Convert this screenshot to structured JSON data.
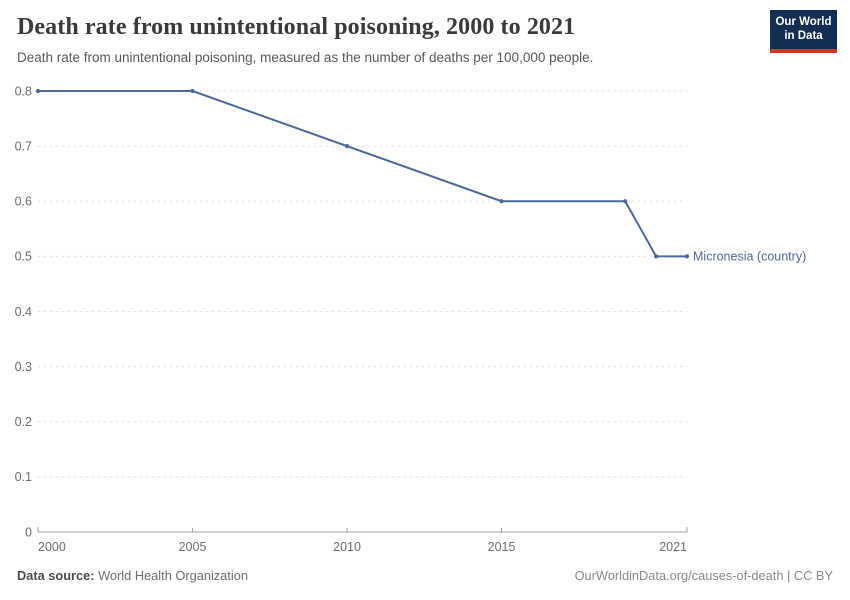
{
  "chart_data": {
    "type": "line",
    "title": "Death rate from unintentional poisoning, 2000 to 2021",
    "subtitle": "Death rate from unintentional poisoning, measured as the number of deaths per 100,000 people.",
    "xlabel": "",
    "ylabel": "",
    "xlim": [
      2000,
      2021
    ],
    "ylim": [
      0,
      0.8
    ],
    "grid": "horizontal-dashed",
    "legend_position": "end-of-line-label",
    "x_ticks": [
      {
        "v": 2000,
        "label": "2000"
      },
      {
        "v": 2005,
        "label": "2005"
      },
      {
        "v": 2010,
        "label": "2010"
      },
      {
        "v": 2015,
        "label": "2015"
      },
      {
        "v": 2021,
        "label": "2021"
      }
    ],
    "y_ticks": [
      {
        "v": 0,
        "label": "0"
      },
      {
        "v": 0.1,
        "label": "0.1"
      },
      {
        "v": 0.2,
        "label": "0.2"
      },
      {
        "v": 0.3,
        "label": "0.3"
      },
      {
        "v": 0.4,
        "label": "0.4"
      },
      {
        "v": 0.5,
        "label": "0.5"
      },
      {
        "v": 0.6,
        "label": "0.6"
      },
      {
        "v": 0.7,
        "label": "0.7"
      },
      {
        "v": 0.8,
        "label": "0.8"
      }
    ],
    "series": [
      {
        "name": "Micronesia (country)",
        "color": "#4C6A9C",
        "x": [
          2000,
          2005,
          2010,
          2015,
          2019,
          2020,
          2021
        ],
        "values": [
          0.8,
          0.8,
          0.7,
          0.6,
          0.6,
          0.5,
          0.5
        ]
      }
    ]
  },
  "branding": {
    "logo_line1": "Our World",
    "logo_line2": "in Data",
    "logo_bg": "#132E52",
    "logo_stripe": "#D8352A"
  },
  "footer": {
    "source_label": "Data source:",
    "source_value": " World Health Organization",
    "right_text": "OurWorldinData.org/causes-of-death | CC BY"
  },
  "colors": {
    "grid": "#dfdfdf",
    "axis": "#a5a5a5",
    "tick_text": "#6e6e6e"
  }
}
